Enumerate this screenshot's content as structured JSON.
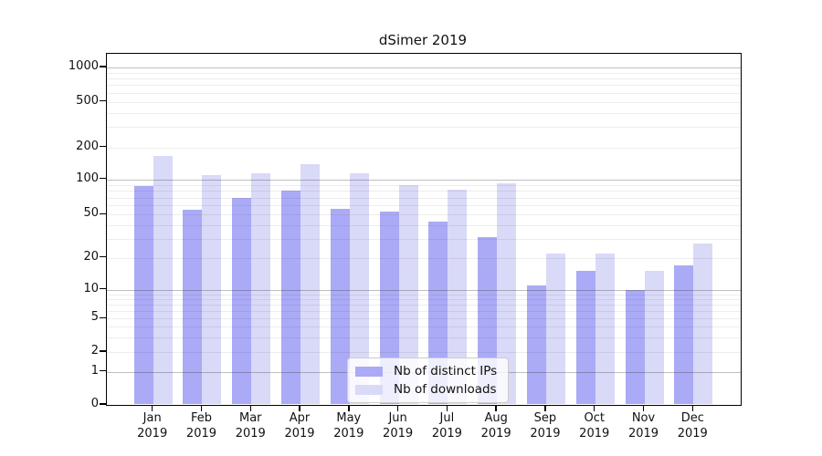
{
  "title": "dSimer 2019",
  "chart_data": {
    "type": "bar",
    "title": "dSimer 2019",
    "categories": [
      "Jan 2019",
      "Feb 2019",
      "Mar 2019",
      "Apr 2019",
      "May 2019",
      "Jun 2019",
      "Jul 2019",
      "Aug 2019",
      "Sep 2019",
      "Oct 2019",
      "Nov 2019",
      "Dec 2019"
    ],
    "series": [
      {
        "name": "Nb of distinct IPs",
        "color": "#aaaaf6",
        "values": [
          88,
          55,
          70,
          80,
          56,
          53,
          43,
          31,
          11,
          15,
          10,
          17
        ]
      },
      {
        "name": "Nb of downloads",
        "color": "#d9d9f8",
        "values": [
          165,
          110,
          115,
          140,
          115,
          89,
          82,
          93,
          22,
          22,
          15,
          27
        ]
      }
    ],
    "xlabel": "",
    "ylabel": "",
    "y_scale": "symlog",
    "y_ticks": [
      0,
      1,
      2,
      5,
      10,
      20,
      50,
      100,
      200,
      500,
      1000
    ],
    "ylim": [
      0,
      1300
    ],
    "grid": true,
    "legend_position": "lower center"
  }
}
